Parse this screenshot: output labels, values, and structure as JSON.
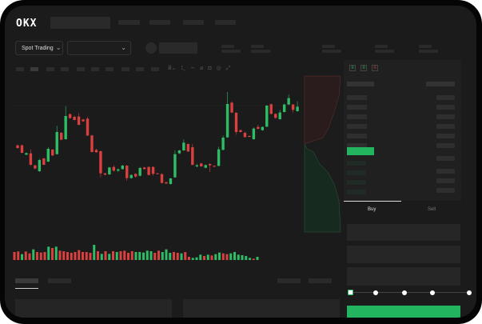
{
  "header": {
    "logo": "OKX",
    "trading_mode": "Spot Trading",
    "pair_selector": ""
  },
  "order_panel": {
    "tabs": [
      {
        "label": "Buy",
        "active": true
      },
      {
        "label": "Sell",
        "active": false
      }
    ],
    "slider_level": 0,
    "submit_color": "#22b45e"
  },
  "colors": {
    "up": "#2ebd66",
    "down": "#d9403f",
    "bg": "#1b1b1b"
  },
  "chart_data": {
    "type": "candlestick",
    "candles": [
      [
        185,
        175,
        188,
        172
      ],
      [
        185,
        157,
        188,
        155
      ],
      [
        150,
        156,
        158,
        148
      ],
      [
        155,
        112,
        170,
        108
      ],
      [
        110,
        98,
        112,
        95
      ],
      [
        88,
        130,
        135,
        85
      ],
      [
        136,
        112,
        138,
        110
      ],
      [
        124,
        172,
        178,
        122
      ],
      [
        169,
        147,
        172,
        145
      ],
      [
        152,
        235,
        258,
        150
      ],
      [
        232,
        206,
        235,
        204
      ],
      [
        208,
        295,
        332,
        206
      ],
      [
        302,
        287,
        305,
        285
      ],
      [
        292,
        280,
        296,
        278
      ],
      [
        293,
        262,
        306,
        260
      ],
      [
        282,
        275,
        284,
        273
      ],
      [
        285,
        222,
        292,
        220
      ],
      [
        222,
        160,
        225,
        158
      ],
      [
        168,
        159,
        172,
        157
      ],
      [
        163,
        80,
        165,
        65
      ],
      [
        80,
        75,
        82,
        72
      ],
      [
        76,
        102,
        104,
        74
      ],
      [
        104,
        90,
        110,
        86
      ],
      [
        90,
        95,
        98,
        85
      ],
      [
        96,
        109,
        112,
        94
      ],
      [
        109,
        62,
        111,
        52
      ],
      [
        62,
        74,
        76,
        60
      ],
      [
        78,
        68,
        80,
        64
      ],
      [
        71,
        100,
        104,
        69
      ],
      [
        102,
        96,
        104,
        94
      ],
      [
        104,
        74,
        106,
        72
      ],
      [
        104,
        78,
        106,
        72
      ],
      [
        80,
        77,
        82,
        76
      ],
      [
        77,
        44,
        80,
        42
      ],
      [
        47,
        42,
        48,
        40
      ],
      [
        40,
        61,
        63,
        38
      ],
      [
        65,
        152,
        166,
        63
      ],
      [
        155,
        166,
        168,
        153
      ],
      [
        166,
        195,
        208,
        164
      ],
      [
        190,
        162,
        192,
        160
      ],
      [
        178,
        112,
        190,
        110
      ],
      [
        106,
        110,
        116,
        102
      ],
      [
        117,
        106,
        119,
        105
      ],
      [
        101,
        111,
        113,
        99
      ],
      [
        115,
        110,
        118,
        85
      ],
      [
        108,
        105,
        110,
        103
      ],
      [
        108,
        170,
        180,
        106
      ],
      [
        168,
        214,
        222,
        166
      ],
      [
        215,
        340,
        385,
        213
      ],
      [
        345,
        308,
        350,
        306
      ],
      [
        307,
        235,
        310,
        225
      ],
      [
        242,
        235,
        245,
        233
      ],
      [
        232,
        216,
        236,
        214
      ],
      [
        220,
        217,
        222,
        215
      ],
      [
        208,
        248,
        252,
        206
      ],
      [
        254,
        247,
        262,
        245
      ],
      [
        242,
        254,
        256,
        240
      ],
      [
        255,
        334,
        336,
        253
      ],
      [
        339,
        303,
        341,
        301
      ],
      [
        303,
        288,
        305,
        285
      ],
      [
        283,
        308,
        318,
        281
      ],
      [
        310,
        338,
        342,
        308
      ],
      [
        338,
        362,
        375,
        336
      ],
      [
        338,
        318,
        340,
        308
      ],
      [
        313,
        330,
        350,
        311
      ]
    ],
    "volume": [
      30,
      32,
      22,
      32,
      25,
      40,
      30,
      28,
      30,
      50,
      45,
      50,
      35,
      33,
      30,
      27,
      30,
      37,
      30,
      30,
      27,
      57,
      33,
      23,
      33,
      23,
      33,
      30,
      33,
      35,
      27,
      33,
      30,
      30,
      28,
      35,
      33,
      27,
      35,
      30,
      40,
      27,
      30,
      27,
      25,
      30,
      12,
      8,
      10,
      20,
      15,
      20,
      17,
      22,
      28,
      25,
      22,
      25,
      30,
      20,
      18,
      15,
      8,
      5,
      12
    ],
    "volume_up": [
      false,
      false,
      true,
      false,
      false,
      true,
      false,
      false,
      false,
      true,
      false,
      true,
      false,
      false,
      false,
      false,
      false,
      false,
      false,
      false,
      false,
      true,
      false,
      true,
      false,
      true,
      false,
      true,
      false,
      false,
      false,
      false,
      true,
      true,
      true,
      true,
      true,
      false,
      false,
      true,
      true,
      true,
      false,
      false,
      true,
      false,
      false,
      true,
      true,
      true,
      false,
      true,
      false,
      true,
      true,
      false,
      false,
      true,
      true,
      true,
      true,
      true,
      true,
      false,
      true
    ]
  }
}
